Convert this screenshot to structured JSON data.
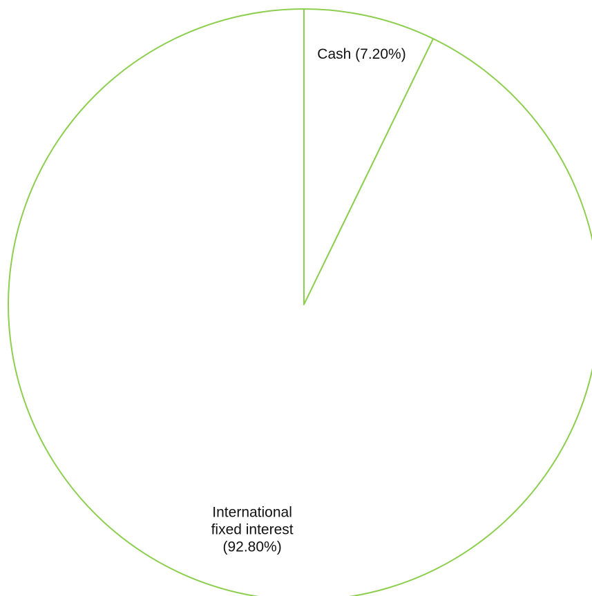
{
  "chart_data": {
    "type": "pie",
    "start_angle_deg": 0,
    "direction": "clockwise",
    "slice_border_color": "#8dce4f",
    "slice_fill_color": "#ffffff",
    "label_color": "#111111",
    "slices": [
      {
        "label": "Cash (7.20%)",
        "label_lines": [
          "Cash (7.20%)"
        ],
        "value": 7.2
      },
      {
        "label": "International fixed interest (92.80%)",
        "label_lines": [
          "International",
          "fixed interest",
          "(92.80%)"
        ],
        "value": 92.8
      }
    ]
  }
}
